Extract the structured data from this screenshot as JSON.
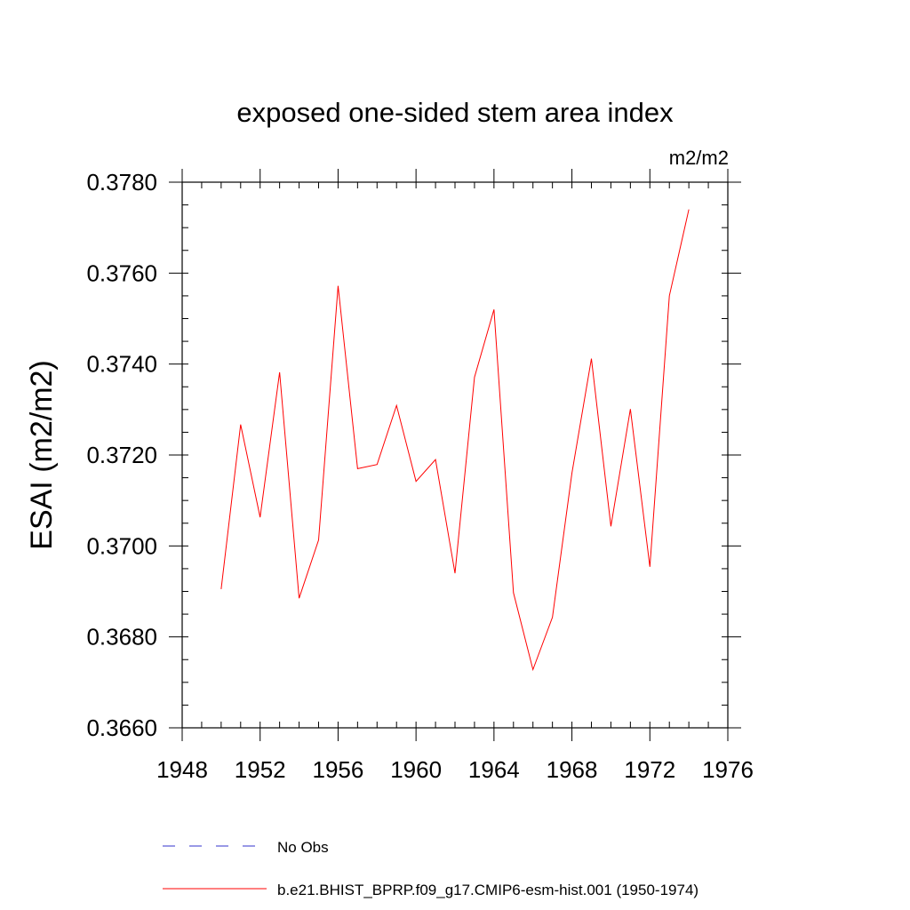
{
  "chart_data": {
    "type": "line",
    "title": "exposed one-sided stem area index",
    "units_label": "m2/m2",
    "ylabel": "ESAI  (m2/m2)",
    "xlabel": "",
    "xlim": [
      1948,
      1976
    ],
    "ylim": [
      0.366,
      0.378
    ],
    "x_ticks": [
      1948,
      1952,
      1956,
      1960,
      1964,
      1968,
      1972,
      1976
    ],
    "x_tick_labels": [
      "1948",
      "1952",
      "1956",
      "1960",
      "1964",
      "1968",
      "1972",
      "1976"
    ],
    "y_ticks": [
      0.366,
      0.368,
      0.37,
      0.372,
      0.374,
      0.376,
      0.378
    ],
    "y_tick_labels": [
      "0.3660",
      "0.3680",
      "0.3700",
      "0.3720",
      "0.3740",
      "0.3760",
      "0.3780"
    ],
    "x_minor_step": 1,
    "y_minor_step": 0.0005,
    "grid": false,
    "legend_position": "bottom",
    "series": [
      {
        "name": "No Obs",
        "color": "#3333cc",
        "style": "dashed",
        "x": [],
        "values": []
      },
      {
        "name": "b.e21.BHIST_BPRP.f09_g17.CMIP6-esm-hist.001 (1950-1974)",
        "color": "#ff0000",
        "style": "solid",
        "x": [
          1950,
          1951,
          1952,
          1953,
          1954,
          1955,
          1956,
          1957,
          1958,
          1959,
          1960,
          1961,
          1962,
          1963,
          1964,
          1965,
          1966,
          1967,
          1968,
          1969,
          1970,
          1971,
          1972,
          1973,
          1974
        ],
        "values": [
          0.36905,
          0.37267,
          0.37063,
          0.37382,
          0.36885,
          0.37013,
          0.37572,
          0.3717,
          0.37179,
          0.37309,
          0.37142,
          0.3719,
          0.3694,
          0.37371,
          0.3752,
          0.36897,
          0.36728,
          0.36843,
          0.3716,
          0.37412,
          0.37043,
          0.37301,
          0.36954,
          0.3755,
          0.3774
        ]
      }
    ]
  }
}
